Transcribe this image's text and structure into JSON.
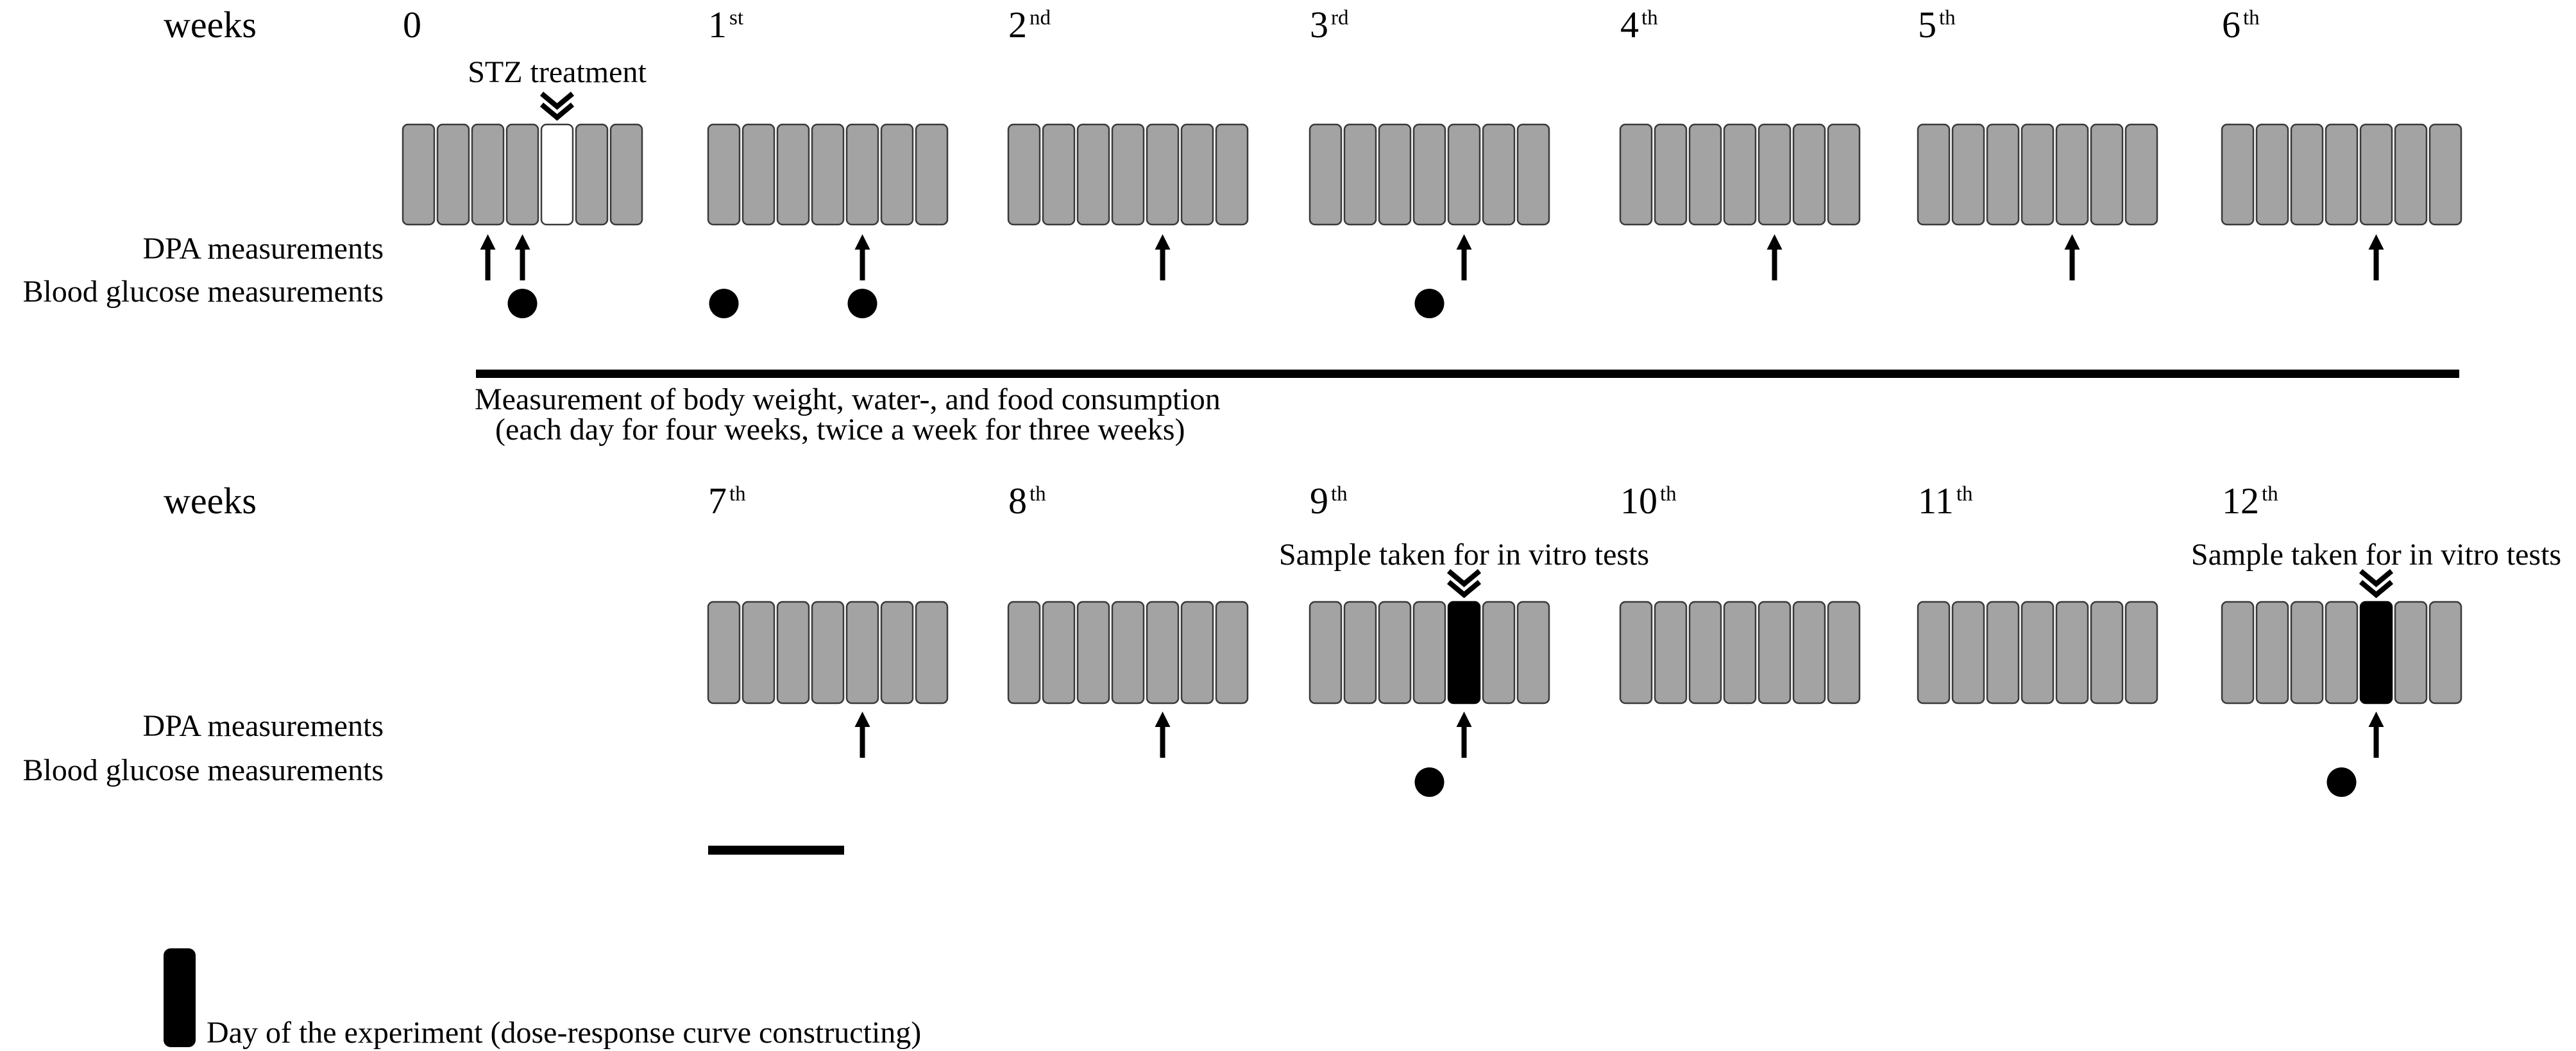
{
  "colors": {
    "day_box_fill": "#a3a3a3",
    "day_box_stroke": "#3a3a3a",
    "treatment_day_fill": "#ffffff",
    "experiment_day_fill": "#000000",
    "ink": "#000000"
  },
  "icons": {
    "dpa_marker": "up-arrow-icon",
    "blood_glucose_marker": "filled-circle-icon",
    "event_marker": "double-chevron-down-icon"
  },
  "rows": [
    {
      "weeks_label": "weeks",
      "dpa_label": "DPA measurements",
      "glucose_label": "Blood glucose measurements",
      "weeks": [
        {
          "num": "0",
          "sup": "",
          "days": [
            "normal",
            "normal",
            "normal",
            "normal",
            "treatment",
            "normal",
            "normal"
          ],
          "dpa_days": [
            3,
            4
          ],
          "glucose_days": [
            4
          ],
          "event": {
            "label": "STZ treatment",
            "day": 5
          }
        },
        {
          "num": "1",
          "sup": "st",
          "days": [
            "normal",
            "normal",
            "normal",
            "normal",
            "normal",
            "normal",
            "normal"
          ],
          "dpa_days": [
            5
          ],
          "glucose_days": [
            1,
            5
          ],
          "event": null
        },
        {
          "num": "2",
          "sup": "nd",
          "days": [
            "normal",
            "normal",
            "normal",
            "normal",
            "normal",
            "normal",
            "normal"
          ],
          "dpa_days": [
            5
          ],
          "glucose_days": [],
          "event": null
        },
        {
          "num": "3",
          "sup": "rd",
          "days": [
            "normal",
            "normal",
            "normal",
            "normal",
            "normal",
            "normal",
            "normal"
          ],
          "dpa_days": [
            5
          ],
          "glucose_days": [
            4
          ],
          "event": null
        },
        {
          "num": "4",
          "sup": "th",
          "days": [
            "normal",
            "normal",
            "normal",
            "normal",
            "normal",
            "normal",
            "normal"
          ],
          "dpa_days": [
            5
          ],
          "glucose_days": [],
          "event": null
        },
        {
          "num": "5",
          "sup": "th",
          "days": [
            "normal",
            "normal",
            "normal",
            "normal",
            "normal",
            "normal",
            "normal"
          ],
          "dpa_days": [
            5
          ],
          "glucose_days": [],
          "event": null
        },
        {
          "num": "6",
          "sup": "th",
          "days": [
            "normal",
            "normal",
            "normal",
            "normal",
            "normal",
            "normal",
            "normal"
          ],
          "dpa_days": [
            5
          ],
          "glucose_days": [],
          "event": null
        }
      ],
      "span_note": [
        "Measurement of body weight, water-, and food consumption",
        "(each day for four weeks, twice a week for three weeks)"
      ]
    },
    {
      "weeks_label": "weeks",
      "dpa_label": "DPA measurements",
      "glucose_label": "Blood glucose measurements",
      "weeks": [
        {
          "num": "7",
          "sup": "th",
          "days": [
            "normal",
            "normal",
            "normal",
            "normal",
            "normal",
            "normal",
            "normal"
          ],
          "dpa_days": [
            5
          ],
          "glucose_days": [],
          "event": null
        },
        {
          "num": "8",
          "sup": "th",
          "days": [
            "normal",
            "normal",
            "normal",
            "normal",
            "normal",
            "normal",
            "normal"
          ],
          "dpa_days": [
            5
          ],
          "glucose_days": [],
          "event": null
        },
        {
          "num": "9",
          "sup": "th",
          "days": [
            "normal",
            "normal",
            "normal",
            "normal",
            "experiment",
            "normal",
            "normal"
          ],
          "dpa_days": [
            5
          ],
          "glucose_days": [
            4
          ],
          "event": {
            "label": "Sample taken for in vitro tests",
            "day": 5
          }
        },
        {
          "num": "10",
          "sup": "th",
          "days": [
            "normal",
            "normal",
            "normal",
            "normal",
            "normal",
            "normal",
            "normal"
          ],
          "dpa_days": [],
          "glucose_days": [],
          "event": null
        },
        {
          "num": "11",
          "sup": "th",
          "days": [
            "normal",
            "normal",
            "normal",
            "normal",
            "normal",
            "normal",
            "normal"
          ],
          "dpa_days": [],
          "glucose_days": [],
          "event": null
        },
        {
          "num": "12",
          "sup": "th",
          "days": [
            "normal",
            "normal",
            "normal",
            "normal",
            "experiment",
            "normal",
            "normal"
          ],
          "dpa_days": [
            5
          ],
          "glucose_days": [
            4
          ],
          "event": {
            "label": "Sample taken for in vitro tests",
            "day": 5
          }
        }
      ]
    }
  ],
  "legend": {
    "label": "Day of the experiment (dose-response curve constructing)"
  }
}
